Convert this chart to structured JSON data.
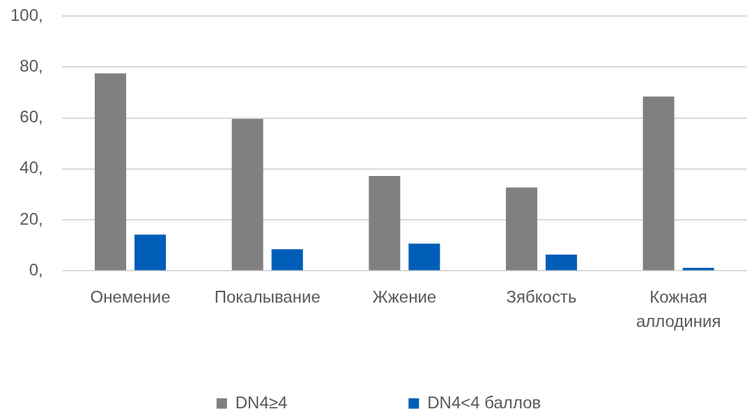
{
  "chart_data": {
    "type": "bar",
    "categories": [
      "Онемение",
      "Покалывание",
      "Жжение",
      "Зябкость",
      "Кожная аллодиния"
    ],
    "series": [
      {
        "name": "DN4≥4",
        "color": "#808080",
        "values": [
          77.5,
          59.6,
          37.2,
          32.7,
          68.4
        ]
      },
      {
        "name": "DN4<4 баллов",
        "color": "#005eb8",
        "values": [
          14.2,
          8.5,
          10.7,
          6.4,
          1.2
        ]
      }
    ],
    "ylim": [
      0,
      100
    ],
    "yticks": [
      {
        "value": 0,
        "label": "0,"
      },
      {
        "value": 20,
        "label": "20,"
      },
      {
        "value": 40,
        "label": "40,"
      },
      {
        "value": 60,
        "label": "60,"
      },
      {
        "value": 80,
        "label": "80,"
      },
      {
        "value": 100,
        "label": "100,"
      }
    ],
    "grid": "y",
    "legend": "bottom"
  }
}
